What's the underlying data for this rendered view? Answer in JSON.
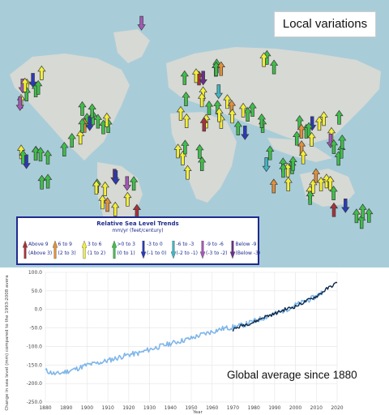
{
  "map": {
    "caption": "Local variations",
    "legend": {
      "title": "Relative Sea Level Trends",
      "units": "mm/yr (feet/century)",
      "items": [
        {
          "mm": "Above 9",
          "ft": "(Above 3)",
          "color": "#a8323a",
          "direction": "up"
        },
        {
          "mm": "6 to 9",
          "ft": "(2 to 3)",
          "color": "#e0913a",
          "direction": "up"
        },
        {
          "mm": "3 to 6",
          "ft": "(1 to 2)",
          "color": "#f2ef3a",
          "direction": "up"
        },
        {
          "mm": ">0 to 3",
          "ft": "(0 to 1)",
          "color": "#3fbf4a",
          "direction": "up"
        },
        {
          "mm": "-3 to 0",
          "ft": "(-1 to 0)",
          "color": "#2a3ab8",
          "direction": "down"
        },
        {
          "mm": "-6 to -3",
          "ft": "(-2 to -1)",
          "color": "#3fb6c2",
          "direction": "down"
        },
        {
          "mm": "-9 to -6",
          "ft": "(-3 to -2)",
          "color": "#a657b8",
          "direction": "down"
        },
        {
          "mm": "Below -9",
          "ft": "(Below -3)",
          "color": "#6a2f8c",
          "direction": "down"
        }
      ]
    }
  },
  "chart_data": {
    "type": "line",
    "caption": "Global average since 1880",
    "xlabel": "Year",
    "ylabel": "Change in sea level (mm) compared to the 1993-2008 avera",
    "xlim": [
      1880,
      2020
    ],
    "ylim": [
      -250,
      100
    ],
    "x_ticks": [
      1880,
      1890,
      1900,
      1910,
      1920,
      1930,
      1940,
      1950,
      1960,
      1970,
      1980,
      1990,
      2000,
      2010,
      2020
    ],
    "y_ticks": [
      100,
      50,
      0,
      -50,
      -100,
      -150,
      -200,
      -250
    ],
    "y_tick_labels": [
      "100.0",
      "50.0",
      "0.0",
      "-50.0",
      "-100.0",
      "-150.0",
      "-200.0",
      "-250.0"
    ],
    "grid": true,
    "series": [
      {
        "color": "#7fb6ea",
        "x": [
          1880,
          1885,
          1890,
          1895,
          1900,
          1905,
          1910,
          1915,
          1920,
          1925,
          1930,
          1935,
          1940,
          1945,
          1950,
          1955,
          1960,
          1965,
          1970,
          1975,
          1980,
          1985,
          1990,
          1995,
          2000,
          2005,
          2010,
          2013
        ],
        "y": [
          -165,
          -175,
          -168,
          -160,
          -150,
          -145,
          -138,
          -130,
          -122,
          -118,
          -108,
          -100,
          -92,
          -85,
          -78,
          -68,
          -60,
          -52,
          -48,
          -42,
          -32,
          -22,
          -12,
          -2,
          12,
          22,
          35,
          48
        ]
      },
      {
        "color": "#0d2a4a",
        "x": [
          1970,
          1975,
          1980,
          1985,
          1990,
          1995,
          2000,
          2005,
          2010,
          2015,
          2020
        ],
        "y": [
          -55,
          -42,
          -35,
          -20,
          -12,
          0,
          8,
          22,
          35,
          55,
          72
        ]
      }
    ]
  }
}
